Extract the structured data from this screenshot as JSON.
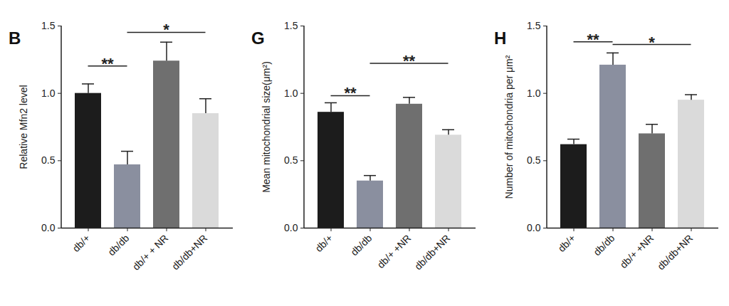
{
  "chart_data": [
    {
      "type": "bar",
      "title": "B",
      "y_label": "Relative Mfn2 level",
      "categories": [
        "db/+",
        "db/db",
        "db/+ + NR",
        "db/db+NR"
      ],
      "values": [
        1.0,
        0.47,
        1.24,
        0.85
      ],
      "errors": [
        0.07,
        0.1,
        0.14,
        0.11
      ],
      "colors": [
        "#1c1c1c",
        "#8a8f9f",
        "#6f6f6f",
        "#dadada"
      ],
      "ylim": [
        0,
        1.5
      ],
      "yticks": [
        {
          "value": 0,
          "label": "0.0"
        },
        0.5,
        {
          "value": 1,
          "label": "1.0"
        },
        1.5
      ],
      "annotations": [
        {
          "text": "**",
          "from": "db/+",
          "to": "db/db",
          "y": 1.2
        },
        {
          "text": "*",
          "from": "db/db",
          "to": "db/db+NR",
          "y": 1.45
        }
      ]
    },
    {
      "type": "bar",
      "title": "G",
      "y_label": "Mean mitochondrial size(μm²)",
      "categories": [
        "db/+",
        "db/db",
        "db/+ +NR",
        "db/db+NR"
      ],
      "values": [
        0.86,
        0.35,
        0.92,
        0.69
      ],
      "errors": [
        0.07,
        0.04,
        0.05,
        0.04
      ],
      "colors": [
        "#1c1c1c",
        "#8a8f9f",
        "#6f6f6f",
        "#dadada"
      ],
      "ylim": [
        0,
        1.5
      ],
      "yticks": [
        {
          "value": 0,
          "label": "0.0"
        },
        0.5,
        {
          "value": 1,
          "label": "1.0"
        },
        1.5
      ],
      "annotations": [
        {
          "text": "**",
          "from": "db/+",
          "to": "db/db",
          "y": 0.98
        },
        {
          "text": "**",
          "from": "db/db",
          "to": "db/db+NR",
          "y": 1.22
        }
      ]
    },
    {
      "type": "bar",
      "title": "H",
      "y_label": "Number of mitochondria per μm²",
      "categories": [
        "db/+",
        "db/db",
        "db/+ +NR",
        "db/db+NR"
      ],
      "values": [
        0.62,
        1.21,
        0.7,
        0.95
      ],
      "errors": [
        0.04,
        0.09,
        0.07,
        0.04
      ],
      "colors": [
        "#1c1c1c",
        "#8a8f9f",
        "#6f6f6f",
        "#dadada"
      ],
      "ylim": [
        0,
        1.5
      ],
      "yticks": [
        {
          "value": 0,
          "label": "0.0"
        },
        0.5,
        {
          "value": 1,
          "label": "1.0"
        },
        1.5
      ],
      "annotations": [
        {
          "text": "**",
          "from": "db/+",
          "to": "db/db",
          "y": 1.38
        },
        {
          "text": "*",
          "from": "db/db",
          "to": "db/db+NR",
          "y": 1.36
        }
      ]
    }
  ]
}
